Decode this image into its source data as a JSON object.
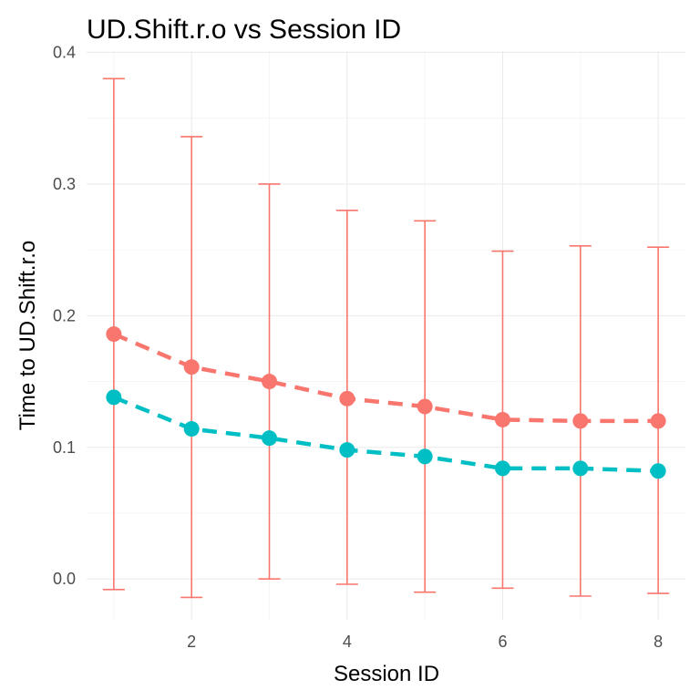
{
  "chart_data": {
    "type": "line",
    "title": "UD.Shift.r.o vs Session ID",
    "xlabel": "Session ID",
    "ylabel": "Time to UD.Shift.r.o",
    "xlim": [
      0.65,
      8.35
    ],
    "ylim": [
      -0.031,
      0.401
    ],
    "x_ticks": [
      2,
      4,
      6,
      8
    ],
    "y_ticks": [
      0.0,
      0.1,
      0.2,
      0.3,
      0.4
    ],
    "y_tick_labels": [
      "0.0",
      "0.1",
      "0.2",
      "0.3",
      "0.4"
    ],
    "grid": true,
    "legend": "none",
    "series": [
      {
        "color": "#F8766D",
        "line_style": "dashed",
        "x": [
          1,
          2,
          3,
          4,
          5,
          6,
          7,
          8
        ],
        "y": [
          0.186,
          0.161,
          0.15,
          0.137,
          0.131,
          0.121,
          0.12,
          0.12
        ],
        "error_lower": [
          -0.008,
          -0.014,
          0.0,
          -0.004,
          -0.01,
          -0.007,
          -0.013,
          -0.011
        ],
        "error_upper": [
          0.38,
          0.336,
          0.3,
          0.28,
          0.272,
          0.249,
          0.253,
          0.252
        ]
      },
      {
        "color": "#00BFC4",
        "line_style": "dashed",
        "x": [
          1,
          2,
          3,
          4,
          5,
          6,
          7,
          8
        ],
        "y": [
          0.138,
          0.114,
          0.107,
          0.098,
          0.093,
          0.084,
          0.084,
          0.082
        ]
      }
    ]
  }
}
